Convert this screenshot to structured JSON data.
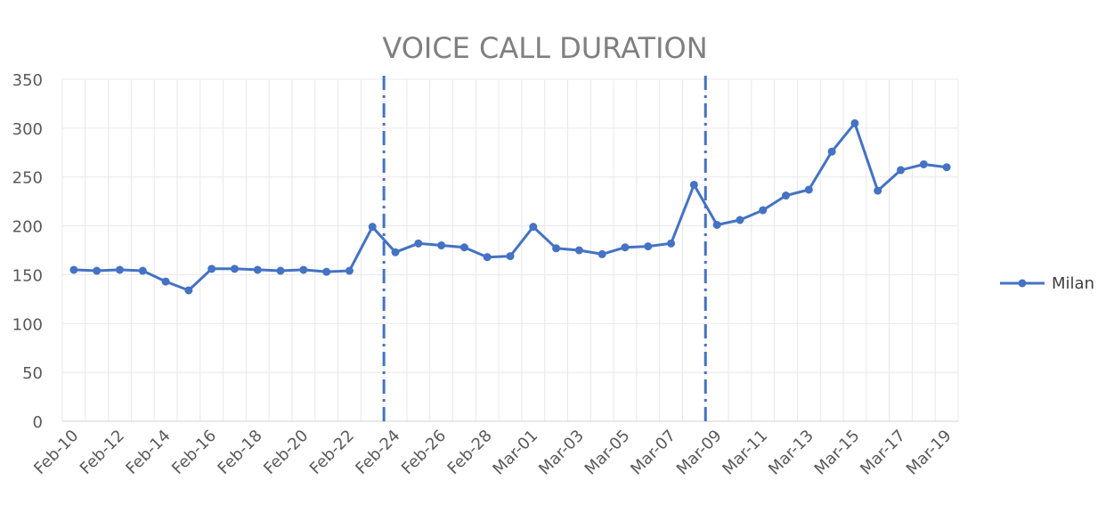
{
  "chart_data": {
    "type": "line",
    "title": "VOICE CALL DURATION",
    "xlabel": "",
    "ylabel": "",
    "ylim": [
      0,
      350
    ],
    "yticks": [
      0,
      50,
      100,
      150,
      200,
      250,
      300,
      350
    ],
    "grid": true,
    "legend_position": "right",
    "x": [
      "Feb-10",
      "Feb-11",
      "Feb-12",
      "Feb-13",
      "Feb-14",
      "Feb-15",
      "Feb-16",
      "Feb-17",
      "Feb-18",
      "Feb-19",
      "Feb-20",
      "Feb-21",
      "Feb-22",
      "Feb-23",
      "Feb-24",
      "Feb-25",
      "Feb-26",
      "Feb-27",
      "Feb-28",
      "Feb-29",
      "Mar-01",
      "Mar-02",
      "Mar-03",
      "Mar-04",
      "Mar-05",
      "Mar-06",
      "Mar-07",
      "Mar-08",
      "Mar-09",
      "Mar-10",
      "Mar-11",
      "Mar-12",
      "Mar-13",
      "Mar-14",
      "Mar-15",
      "Mar-16",
      "Mar-17",
      "Mar-18",
      "Mar-19"
    ],
    "x_tick_labels": [
      "Feb-10",
      "Feb-12",
      "Feb-14",
      "Feb-16",
      "Feb-18",
      "Feb-20",
      "Feb-22",
      "Feb-24",
      "Feb-26",
      "Feb-28",
      "Mar-01",
      "Mar-03",
      "Mar-05",
      "Mar-07",
      "Mar-09",
      "Mar-11",
      "Mar-13",
      "Mar-15",
      "Mar-17",
      "Mar-19"
    ],
    "series": [
      {
        "name": "Milan",
        "color": "#4472c4",
        "values": [
          155,
          154,
          155,
          154,
          143,
          134,
          156,
          156,
          155,
          154,
          155,
          153,
          154,
          199,
          173,
          182,
          180,
          178,
          168,
          169,
          199,
          177,
          175,
          171,
          178,
          179,
          182,
          242,
          201,
          206,
          216,
          231,
          237,
          276,
          305,
          236,
          257,
          263,
          260
        ]
      }
    ],
    "reference_lines": [
      {
        "x": "Feb-24",
        "style": "dash-dot",
        "color": "#4472c4"
      },
      {
        "x": "Mar-09",
        "style": "dash-dot",
        "color": "#4472c4"
      }
    ]
  }
}
